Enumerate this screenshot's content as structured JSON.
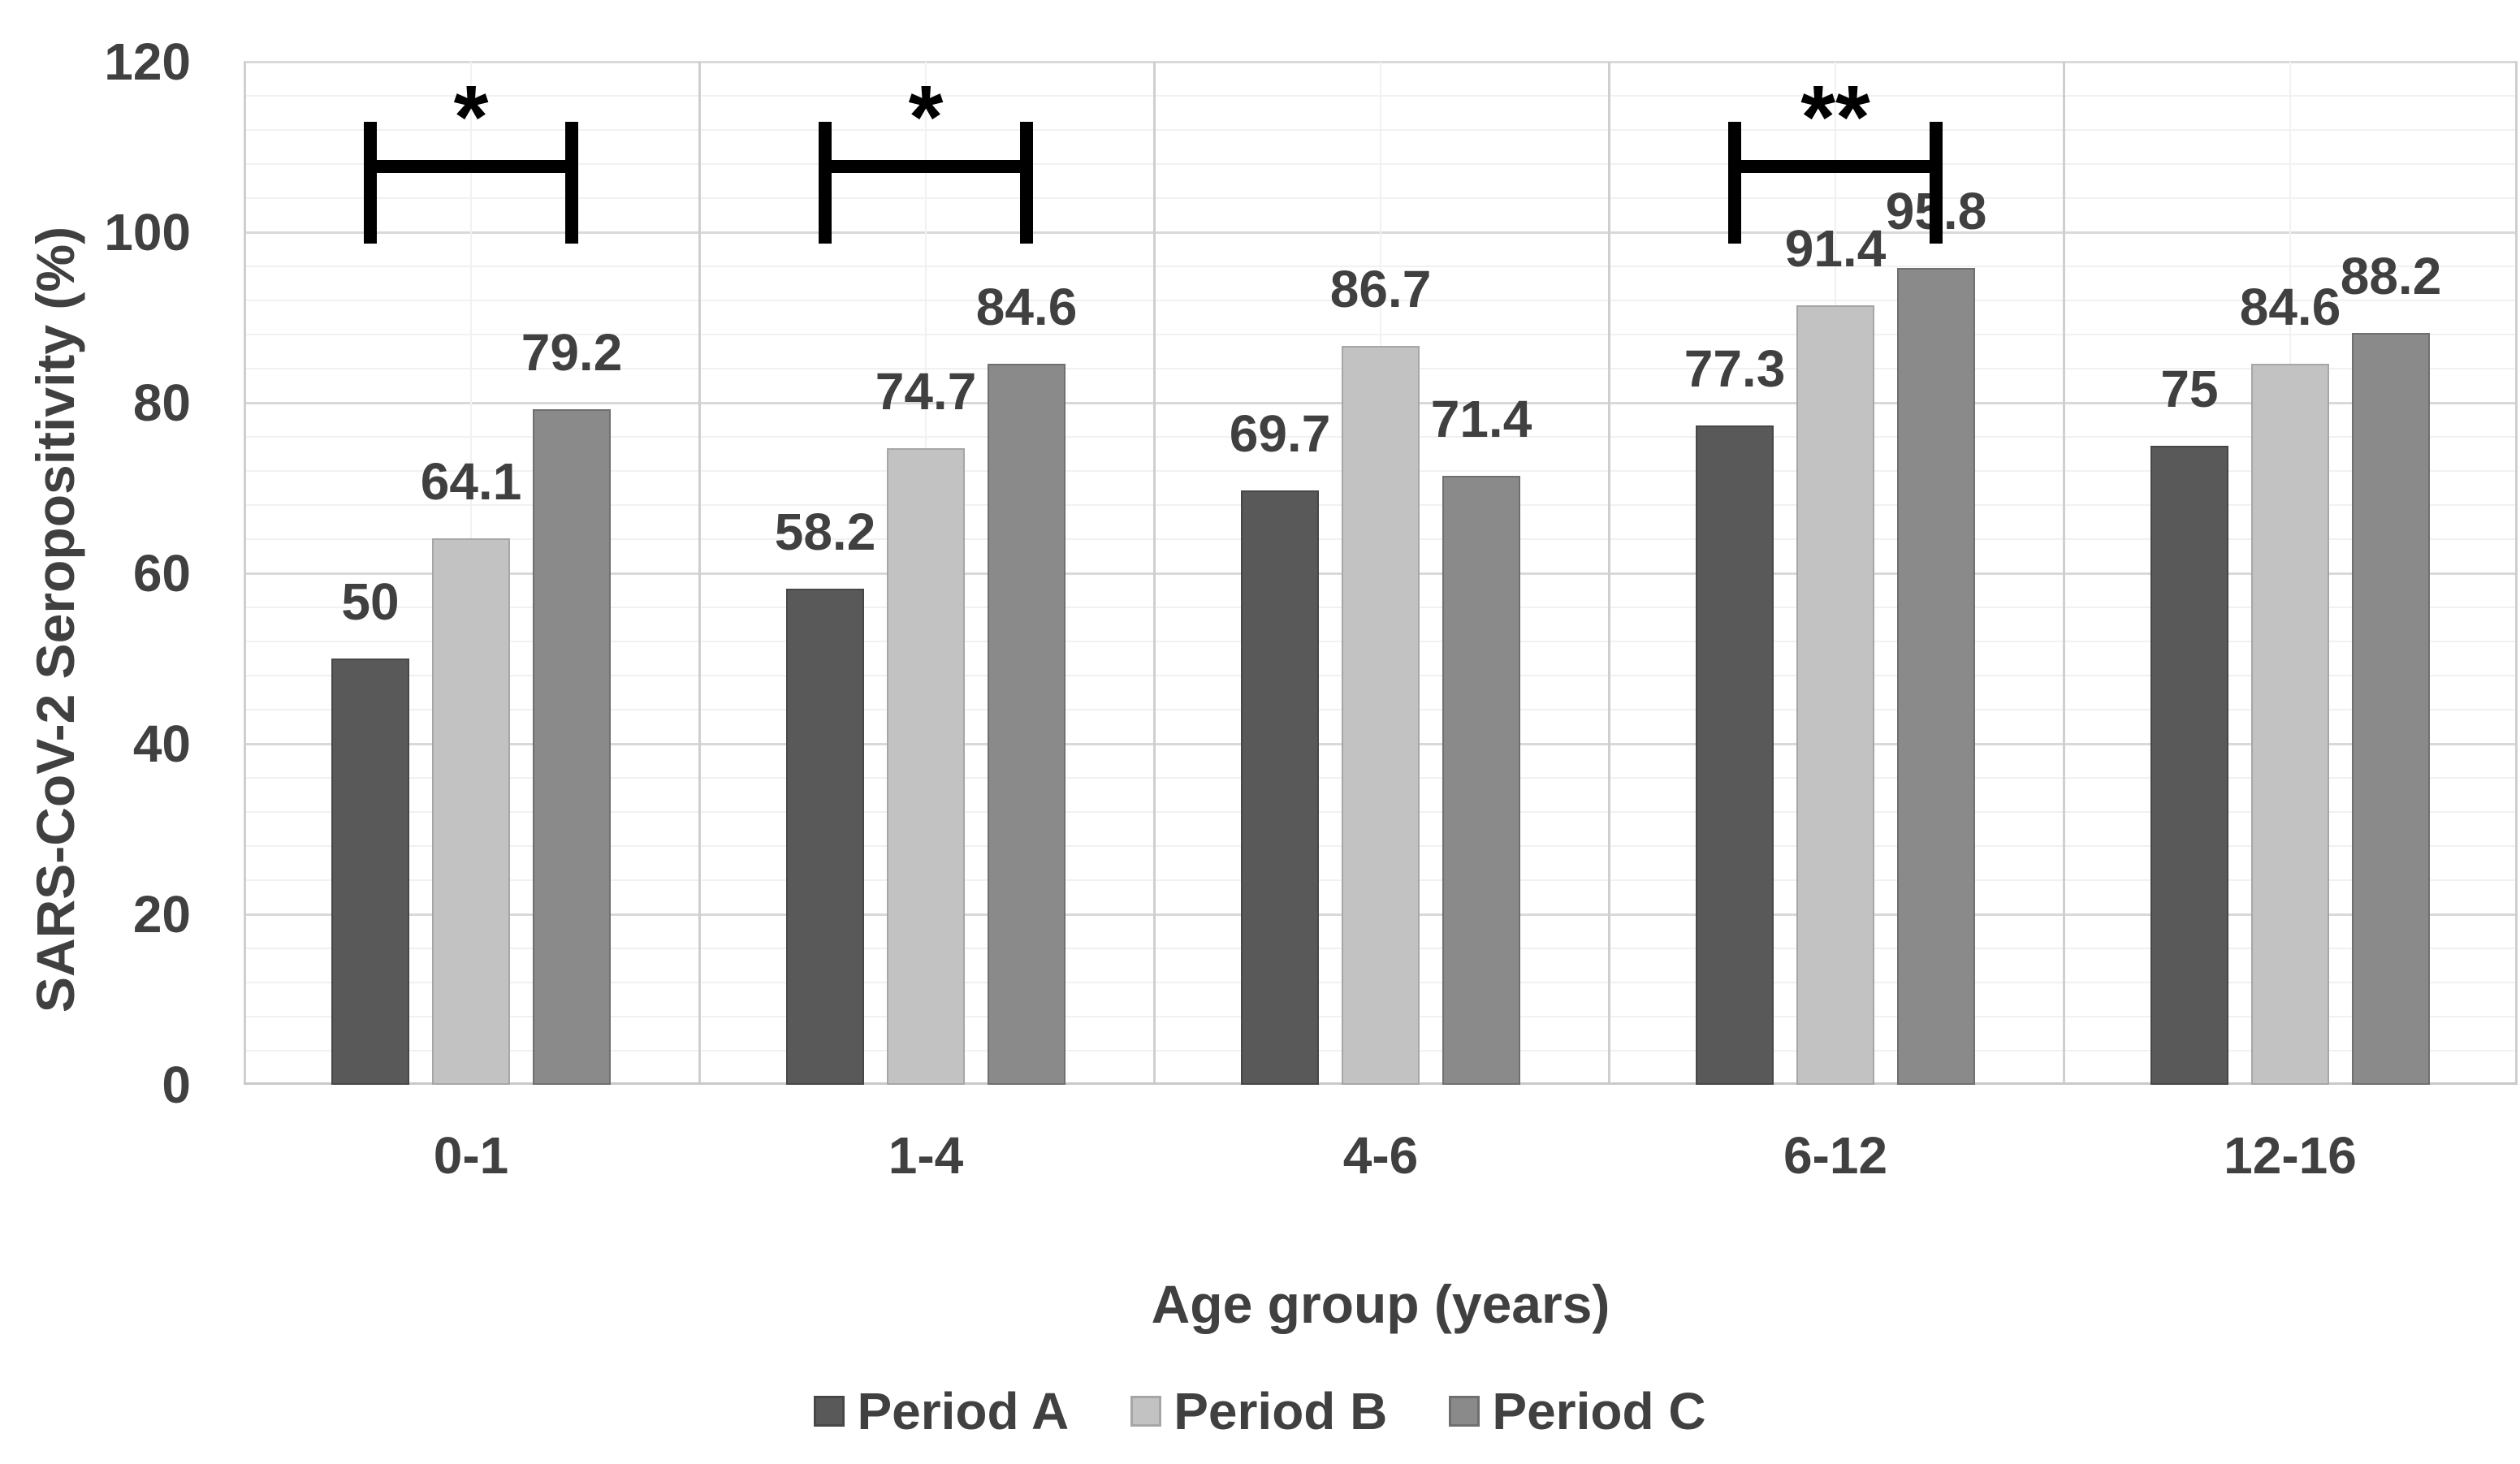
{
  "chart_data": {
    "type": "bar",
    "title": "",
    "xlabel": "Age group (years)",
    "ylabel": "SARS-CoV-2 Seropositivity (%)",
    "categories": [
      "0-1",
      "1-4",
      "4-6",
      "6-12",
      "12-16"
    ],
    "series": [
      {
        "name": "Period A",
        "color": "#595959",
        "border_color": "#474747",
        "values": [
          50,
          58.2,
          69.7,
          77.3,
          75
        ]
      },
      {
        "name": "Period B",
        "color": "#c2c2c2",
        "border_color": "#a6a6a6",
        "values": [
          64.1,
          74.7,
          86.7,
          91.4,
          84.6
        ]
      },
      {
        "name": "Period C",
        "color": "#8a8a8a",
        "border_color": "#6f6f6f",
        "values": [
          79.2,
          84.6,
          71.4,
          95.8,
          88.2
        ]
      }
    ],
    "ylim": [
      0,
      120
    ],
    "y_ticks": [
      0,
      20,
      40,
      60,
      80,
      100,
      120
    ],
    "y_minor_step": 4,
    "grid": true,
    "legend_position": "bottom",
    "annotations": [
      {
        "category": "0-1",
        "symbol": "*",
        "from_series": "Period A",
        "to_series": "Period C"
      },
      {
        "category": "1-4",
        "symbol": "*",
        "from_series": "Period A",
        "to_series": "Period C"
      },
      {
        "category": "6-12",
        "symbol": "**",
        "from_series": "Period A",
        "to_series": "Period C"
      }
    ],
    "text_color": "#404040",
    "annotation_color": "#000000"
  }
}
